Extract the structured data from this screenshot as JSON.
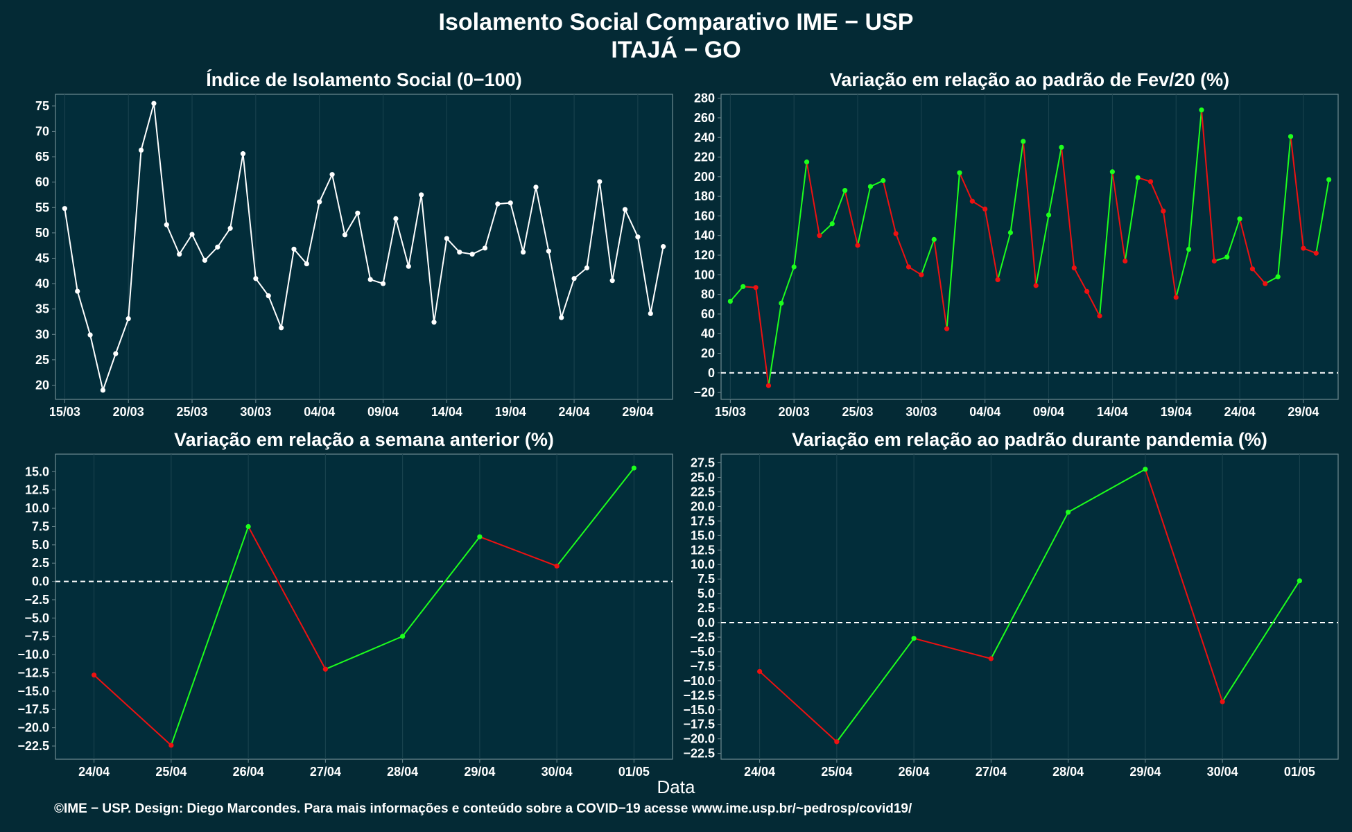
{
  "title": "Isolamento Social Comparativo IME − USP",
  "subtitle": "ITAJÁ − GO",
  "xlabel": "Data",
  "footer": "©IME − USP. Design: Diego Marcondes. Para mais informações e conteúdo sobre a COVID−19 acesse www.ime.usp.br/~pedrosp/covid19/",
  "colors": {
    "background": "#042a35",
    "panel": "#022d3a",
    "grid": "#1c4450",
    "border": "#6e8a91",
    "white": "#ffffff",
    "green": "#1dff1d",
    "red": "#ee1111"
  },
  "chart_data": [
    {
      "type": "line",
      "title": "Índice de Isolamento Social (0−100)",
      "x": [
        "15/03",
        "16/03",
        "17/03",
        "18/03",
        "19/03",
        "20/03",
        "21/03",
        "22/03",
        "23/03",
        "24/03",
        "25/03",
        "26/03",
        "27/03",
        "28/03",
        "29/03",
        "30/03",
        "31/03",
        "01/04",
        "02/04",
        "03/04",
        "04/04",
        "05/04",
        "06/04",
        "07/04",
        "08/04",
        "09/04",
        "10/04",
        "11/04",
        "12/04",
        "13/04",
        "14/04",
        "15/04",
        "16/04",
        "17/04",
        "18/04",
        "19/04",
        "20/04",
        "21/04",
        "22/04",
        "23/04",
        "24/04",
        "25/04",
        "26/04",
        "27/04",
        "28/04",
        "29/04",
        "30/04",
        "01/05"
      ],
      "values": [
        54.8,
        38.5,
        29.9,
        19.0,
        26.2,
        33.1,
        66.3,
        75.5,
        51.6,
        45.8,
        49.7,
        44.6,
        47.2,
        50.9,
        65.6,
        41.0,
        37.6,
        31.3,
        46.8,
        43.9,
        56.1,
        61.5,
        49.6,
        53.9,
        40.8,
        40.0,
        52.8,
        43.4,
        57.5,
        32.4,
        48.9,
        46.2,
        45.8,
        47.0,
        55.7,
        55.9,
        46.2,
        59.0,
        46.4,
        33.3,
        41.0,
        43.1,
        60.1,
        40.6,
        54.6,
        49.2,
        34.1,
        47.3
      ],
      "xticks": [
        "15/03",
        "20/03",
        "25/03",
        "30/03",
        "04/04",
        "09/04",
        "14/04",
        "19/04",
        "24/04",
        "29/04"
      ],
      "yticks": [
        20,
        25,
        30,
        35,
        40,
        45,
        50,
        55,
        60,
        65,
        70,
        75
      ],
      "ylim": [
        17.2,
        77.3
      ],
      "color_mode": "white",
      "zero_line": false
    },
    {
      "type": "line",
      "title": "Variação em relação ao padrão de Fev/20 (%)",
      "x": [
        "15/03",
        "16/03",
        "17/03",
        "18/03",
        "19/03",
        "20/03",
        "21/03",
        "22/03",
        "23/03",
        "24/03",
        "25/03",
        "26/03",
        "27/03",
        "28/03",
        "29/03",
        "30/03",
        "31/03",
        "01/04",
        "02/04",
        "03/04",
        "04/04",
        "05/04",
        "06/04",
        "07/04",
        "08/04",
        "09/04",
        "10/04",
        "11/04",
        "12/04",
        "13/04",
        "14/04",
        "15/04",
        "16/04",
        "17/04",
        "18/04",
        "19/04",
        "20/04",
        "21/04",
        "22/04",
        "23/04",
        "24/04",
        "25/04",
        "26/04",
        "27/04",
        "28/04",
        "29/04",
        "30/04",
        "01/05"
      ],
      "values": [
        73,
        88,
        87,
        -13,
        71,
        108,
        215,
        140,
        152,
        186,
        130,
        190,
        196,
        142,
        108,
        100,
        136,
        45,
        204,
        175,
        167,
        95,
        143,
        236,
        89,
        161,
        230,
        107,
        83,
        58,
        205,
        114,
        199,
        195,
        165,
        77,
        126,
        268,
        114,
        118,
        157,
        106,
        91,
        98,
        241,
        127,
        122,
        197
      ],
      "xticks": [
        "15/03",
        "20/03",
        "25/03",
        "30/03",
        "04/04",
        "09/04",
        "14/04",
        "19/04",
        "24/04",
        "29/04"
      ],
      "yticks": [
        -20,
        0,
        20,
        40,
        60,
        80,
        100,
        120,
        140,
        160,
        180,
        200,
        220,
        240,
        260,
        280
      ],
      "ylim": [
        -27,
        284
      ],
      "color_mode": "sign",
      "zero_line": true
    },
    {
      "type": "line",
      "title": "Variação em relação a semana anterior (%)",
      "x": [
        "24/04",
        "25/04",
        "26/04",
        "27/04",
        "28/04",
        "29/04",
        "30/04",
        "01/05"
      ],
      "values": [
        -12.8,
        -22.4,
        7.5,
        -12.0,
        -7.5,
        6.1,
        2.1,
        15.5
      ],
      "xticks": [
        "24/04",
        "25/04",
        "26/04",
        "27/04",
        "28/04",
        "29/04",
        "30/04",
        "01/05"
      ],
      "yticks": [
        -22.5,
        -20.0,
        -17.5,
        -15.0,
        -12.5,
        -10.0,
        -7.5,
        -5.0,
        -2.5,
        0.0,
        2.5,
        5.0,
        7.5,
        10.0,
        12.5,
        15.0
      ],
      "ylim": [
        -24.3,
        17.4
      ],
      "color_mode": "sign",
      "zero_line": true
    },
    {
      "type": "line",
      "title": "Variação em relação ao padrão durante pandemia (%)",
      "x": [
        "24/04",
        "25/04",
        "26/04",
        "27/04",
        "28/04",
        "29/04",
        "30/04",
        "01/05"
      ],
      "values": [
        -8.4,
        -20.5,
        -2.7,
        -6.2,
        19.0,
        26.4,
        -13.6,
        7.2
      ],
      "xticks": [
        "24/04",
        "25/04",
        "26/04",
        "27/04",
        "28/04",
        "29/04",
        "30/04",
        "01/05"
      ],
      "yticks": [
        -22.5,
        -20.0,
        -17.5,
        -15.0,
        -12.5,
        -10.0,
        -7.5,
        -5.0,
        -2.5,
        0.0,
        2.5,
        5.0,
        7.5,
        10.0,
        12.5,
        15.0,
        17.5,
        20.0,
        22.5,
        25.0,
        27.5
      ],
      "ylim": [
        -23.5,
        29.0
      ],
      "color_mode": "sign",
      "zero_line": true
    }
  ]
}
